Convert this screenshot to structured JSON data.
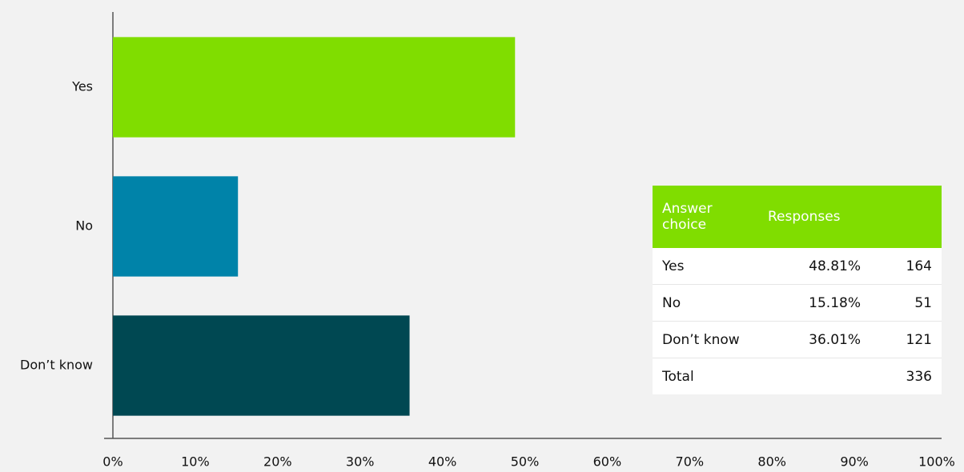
{
  "chart_data": {
    "type": "bar",
    "orientation": "horizontal",
    "categories": [
      "Yes",
      "No",
      "Don’t know"
    ],
    "values": [
      48.81,
      15.18,
      36.01
    ],
    "value_labels": [
      "48.81%",
      "15.18%",
      "36.01%"
    ],
    "colors": [
      "#80dd00",
      "#0083a9",
      "#004852"
    ],
    "xlim": [
      0,
      100
    ],
    "xticks": [
      {
        "value": 0,
        "label": "0%"
      },
      {
        "value": 10,
        "label": "10%"
      },
      {
        "value": 20,
        "label": "20%"
      },
      {
        "value": 30,
        "label": "30%"
      },
      {
        "value": 40,
        "label": "40%"
      },
      {
        "value": 50,
        "label": "50%"
      },
      {
        "value": 60,
        "label": "60%"
      },
      {
        "value": 70,
        "label": "70%"
      },
      {
        "value": 80,
        "label": "80%"
      },
      {
        "value": 90,
        "label": "90%"
      },
      {
        "value": 100,
        "label": "100%"
      }
    ],
    "grid": false
  },
  "table": {
    "header": [
      "Answer choice",
      "Responses"
    ],
    "counts": [
      164,
      51,
      121
    ],
    "total_label": "Total",
    "total": 336
  }
}
